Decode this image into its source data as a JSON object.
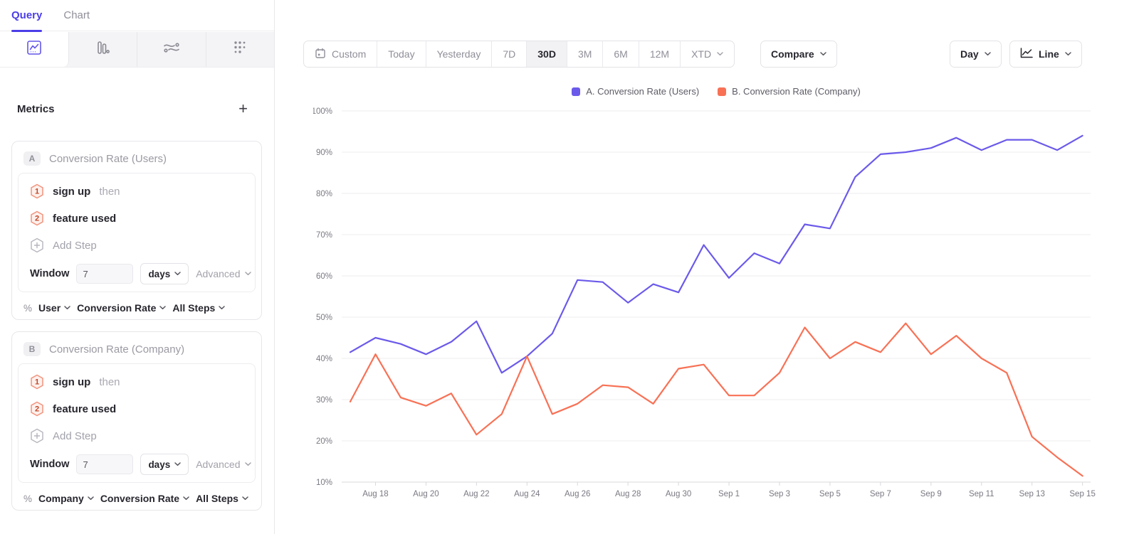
{
  "colors": {
    "accent_purple": "#4c3ee8",
    "icon_active_purple": "#6456e8",
    "series_a": "#6b5aea",
    "series_b": "#f87155",
    "step_badge_border": "#f2947e",
    "step_badge_fill": "#fdf1ed",
    "step_badge_text": "#c14627",
    "grid_line": "#ececef",
    "axis_line": "#d9d9de",
    "tick_text": "#797983"
  },
  "sidebar": {
    "tabs": [
      {
        "label": "Query",
        "active": true
      },
      {
        "label": "Chart",
        "active": false
      }
    ],
    "chart_type_icons": [
      "line-chart",
      "bar-chart",
      "flows",
      "grid-dots"
    ],
    "metrics": {
      "heading": "Metrics",
      "add_label": "+",
      "cards": [
        {
          "id": "A",
          "title": "Conversion Rate (Users)",
          "steps": [
            {
              "num": "1",
              "label": "sign up",
              "suffix": "then"
            },
            {
              "num": "2",
              "label": "feature used",
              "suffix": ""
            }
          ],
          "add_step_label": "Add Step",
          "window": {
            "label": "Window",
            "value": "7",
            "unit": "days",
            "advanced_label": "Advanced"
          },
          "measure": {
            "prefix": "%",
            "entity": "User",
            "metric": "Conversion Rate",
            "steps": "All Steps"
          }
        },
        {
          "id": "B",
          "title": "Conversion Rate (Company)",
          "steps": [
            {
              "num": "1",
              "label": "sign up",
              "suffix": "then"
            },
            {
              "num": "2",
              "label": "feature used",
              "suffix": ""
            }
          ],
          "add_step_label": "Add Step",
          "window": {
            "label": "Window",
            "value": "7",
            "unit": "days",
            "advanced_label": "Advanced"
          },
          "measure": {
            "prefix": "%",
            "entity": "Company",
            "metric": "Conversion Rate",
            "steps": "All Steps"
          }
        }
      ]
    }
  },
  "toolbar": {
    "date_ranges": [
      {
        "label": "Custom",
        "icon": "calendar",
        "active": false
      },
      {
        "label": "Today",
        "active": false
      },
      {
        "label": "Yesterday",
        "active": false
      },
      {
        "label": "7D",
        "active": false
      },
      {
        "label": "30D",
        "active": true
      },
      {
        "label": "3M",
        "active": false
      },
      {
        "label": "6M",
        "active": false
      },
      {
        "label": "12M",
        "active": false
      },
      {
        "label": "XTD",
        "chevron": true,
        "active": false
      }
    ],
    "compare_label": "Compare",
    "granularity_label": "Day",
    "chart_style_label": "Line"
  },
  "legend": [
    {
      "label": "A. Conversion Rate (Users)",
      "color": "#6b5aea"
    },
    {
      "label": "B. Conversion Rate (Company)",
      "color": "#f87155"
    }
  ],
  "chart_data": {
    "type": "line",
    "title": "",
    "xlabel": "",
    "ylabel": "",
    "y_axis": {
      "min": 10,
      "max": 100,
      "step": 10,
      "format": "percent"
    },
    "y_tick_labels": [
      "100%",
      "90%",
      "80%",
      "70%",
      "60%",
      "50%",
      "40%",
      "30%",
      "20%",
      "10%"
    ],
    "grid": "horizontal",
    "legend_position": "top-center",
    "x": [
      "Aug 17",
      "Aug 18",
      "Aug 19",
      "Aug 20",
      "Aug 21",
      "Aug 22",
      "Aug 23",
      "Aug 24",
      "Aug 25",
      "Aug 26",
      "Aug 27",
      "Aug 28",
      "Aug 29",
      "Aug 30",
      "Aug 31",
      "Sep 1",
      "Sep 2",
      "Sep 3",
      "Sep 4",
      "Sep 5",
      "Sep 6",
      "Sep 7",
      "Sep 8",
      "Sep 9",
      "Sep 10",
      "Sep 11",
      "Sep 12",
      "Sep 13",
      "Sep 14",
      "Sep 15"
    ],
    "x_tick_labels": [
      "Aug 18",
      "Aug 20",
      "Aug 22",
      "Aug 24",
      "Aug 26",
      "Aug 28",
      "Aug 30",
      "Sep 1",
      "Sep 3",
      "Sep 5",
      "Sep 7",
      "Sep 9",
      "Sep 11",
      "Sep 13",
      "Sep 15"
    ],
    "series": [
      {
        "name": "A. Conversion Rate (Users)",
        "color": "#6b5aea",
        "values": [
          41.5,
          45,
          43.5,
          41,
          44,
          49,
          36.5,
          40.5,
          46,
          59,
          58.5,
          53.5,
          58,
          56,
          67.5,
          59.5,
          65.5,
          63,
          72.5,
          71.5,
          84,
          89.5,
          90,
          91,
          93.5,
          90.5,
          93,
          93,
          90.5,
          94
        ]
      },
      {
        "name": "B. Conversion Rate (Company)",
        "color": "#f87155",
        "values": [
          29.5,
          41,
          30.5,
          28.5,
          31.5,
          21.5,
          26.5,
          40.5,
          26.5,
          29,
          33.5,
          33,
          29,
          37.5,
          38.5,
          31,
          31,
          36.5,
          47.5,
          40,
          44,
          41.5,
          48.5,
          41,
          45.5,
          40,
          36.5,
          21,
          16,
          11.5
        ]
      }
    ]
  }
}
